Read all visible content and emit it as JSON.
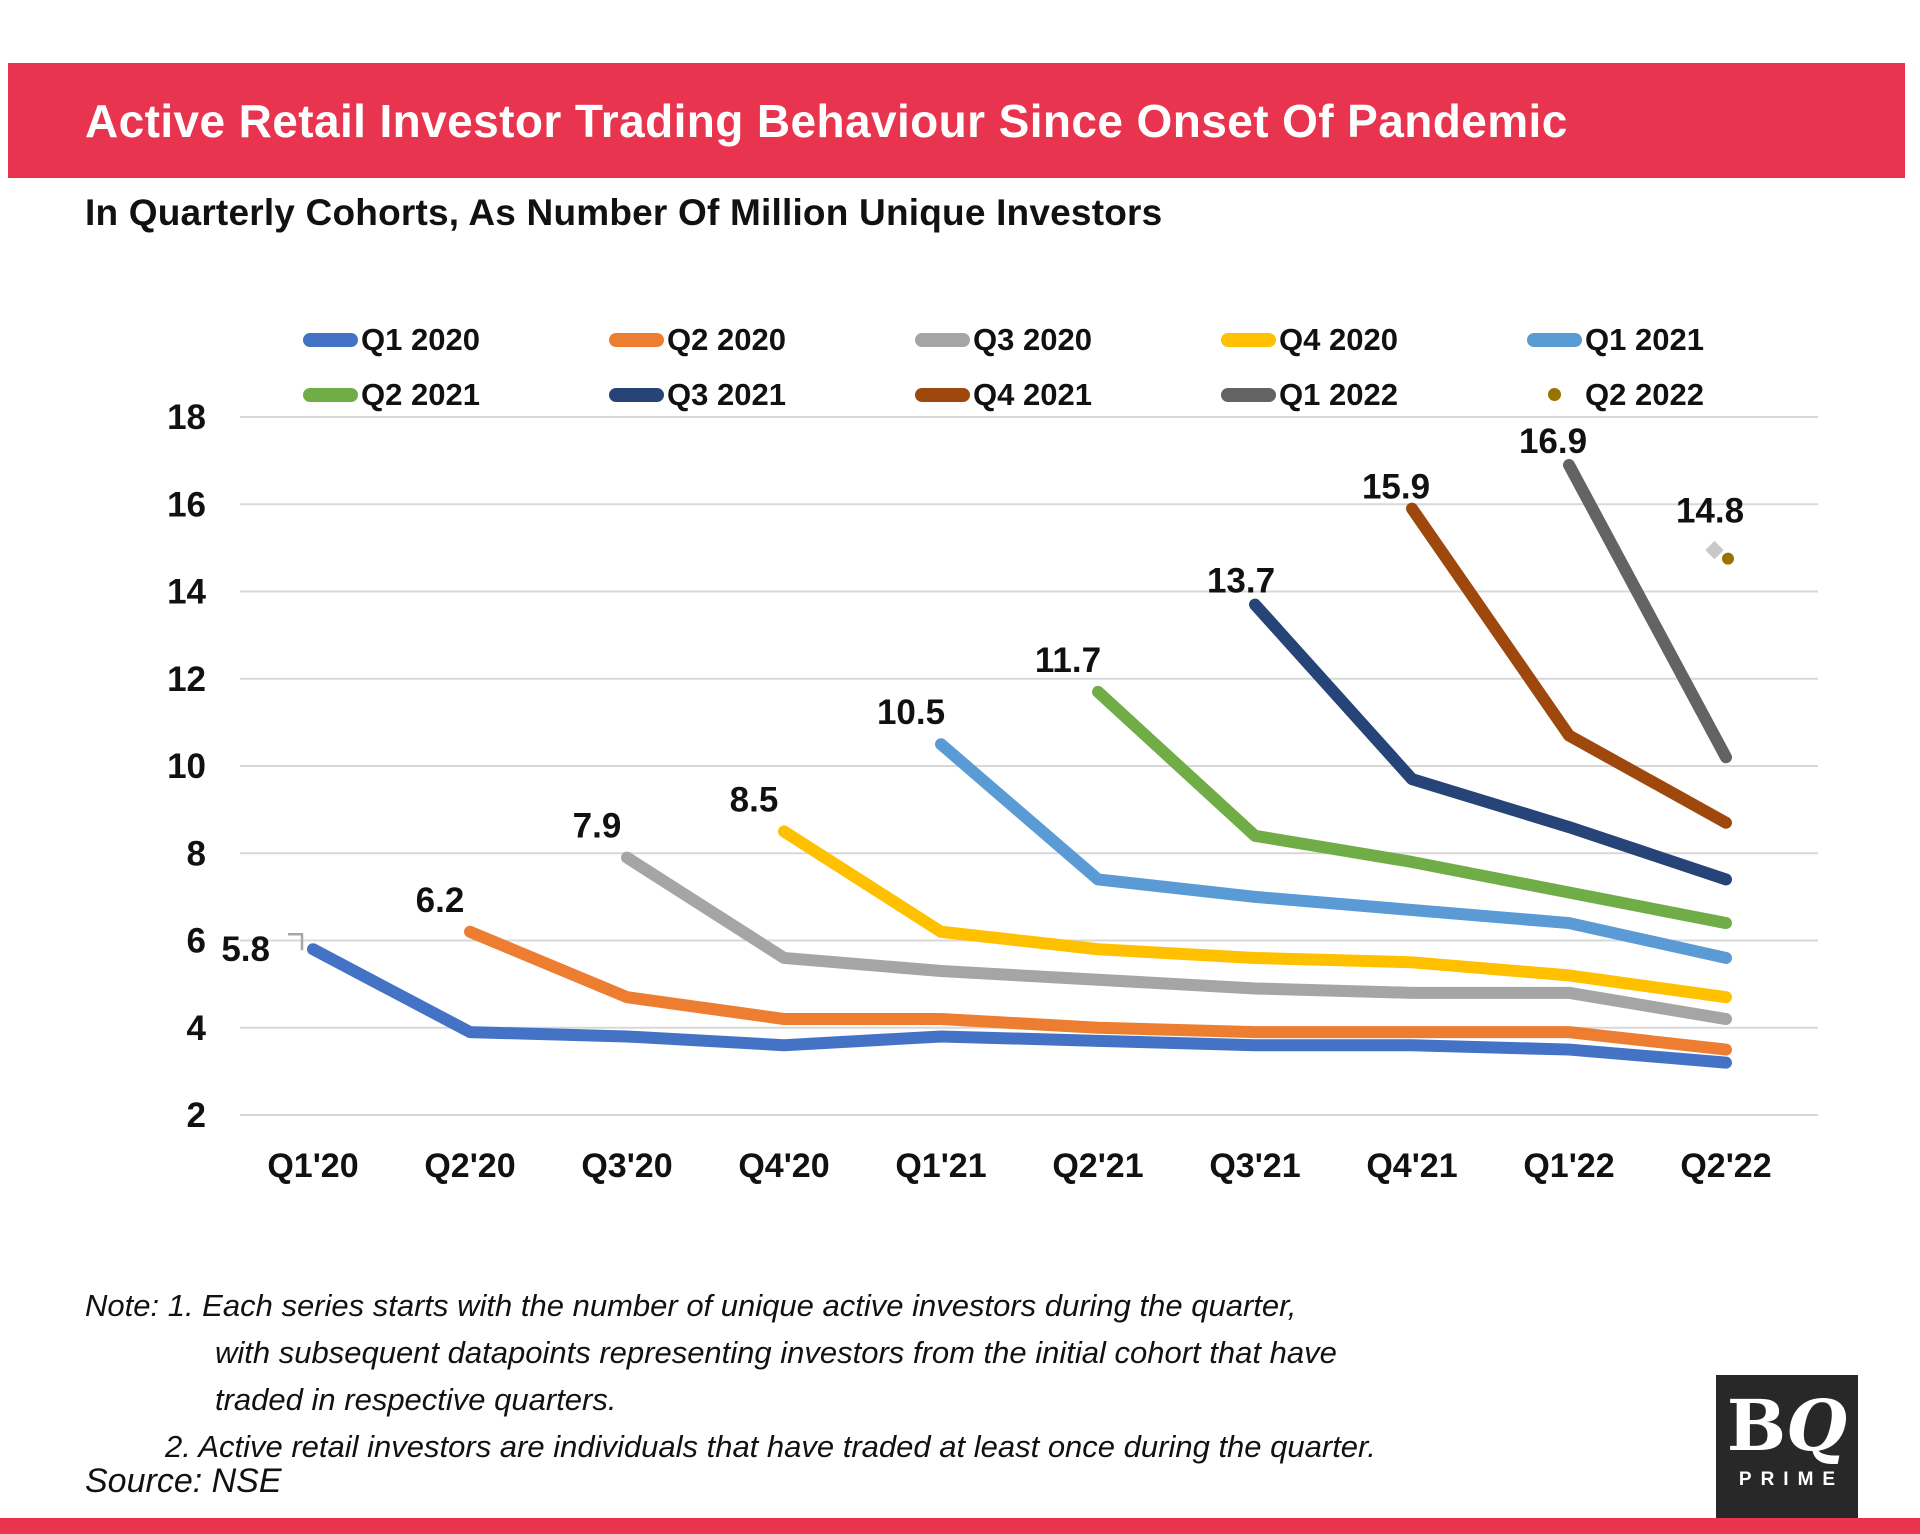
{
  "header": {
    "title": "Active Retail Investor Trading Behaviour Since Onset Of Pandemic",
    "subtitle": "In Quarterly Cohorts, As Number Of Million Unique Investors",
    "accent_color": "#E8344E"
  },
  "legend": {
    "position": "top",
    "items": [
      {
        "label": "Q1 2020",
        "color": "#4472C4",
        "marker": "line"
      },
      {
        "label": "Q2 2020",
        "color": "#ED7D31",
        "marker": "line"
      },
      {
        "label": "Q3 2020",
        "color": "#A5A5A5",
        "marker": "line"
      },
      {
        "label": "Q4 2020",
        "color": "#FFC000",
        "marker": "line"
      },
      {
        "label": "Q1 2021",
        "color": "#5B9BD5",
        "marker": "line"
      },
      {
        "label": "Q2 2021",
        "color": "#70AD47",
        "marker": "line"
      },
      {
        "label": "Q3 2021",
        "color": "#264478",
        "marker": "line"
      },
      {
        "label": "Q4 2021",
        "color": "#9E480E",
        "marker": "line"
      },
      {
        "label": "Q1 2022",
        "color": "#636363",
        "marker": "line"
      },
      {
        "label": "Q2 2022",
        "color": "#997300",
        "marker": "dot"
      }
    ]
  },
  "chart_data": {
    "type": "line",
    "title": "Active Retail Investor Trading Behaviour Since Onset Of Pandemic",
    "subtitle": "In Quarterly Cohorts, As Number Of Million Unique Investors",
    "unit": "million unique investors",
    "categories": [
      "Q1'20",
      "Q2'20",
      "Q3'20",
      "Q4'20",
      "Q1'21",
      "Q2'21",
      "Q3'21",
      "Q4'21",
      "Q1'22",
      "Q2'22"
    ],
    "y_axis": {
      "min": 2,
      "max": 18,
      "tick_step": 2,
      "ticks": [
        18,
        16,
        14,
        12,
        10,
        8,
        6,
        4,
        2
      ]
    },
    "grid": "horizontal",
    "legend_position": "top",
    "gridline_color": "#D8D8D8",
    "series": [
      {
        "name": "Q1 2020",
        "color": "#4472C4",
        "start_index": 0,
        "start_label": "5.8",
        "values": [
          5.8,
          3.9,
          3.8,
          3.6,
          3.8,
          3.7,
          3.6,
          3.6,
          3.5,
          3.2
        ]
      },
      {
        "name": "Q2 2020",
        "color": "#ED7D31",
        "start_index": 1,
        "start_label": "6.2",
        "values": [
          6.2,
          4.7,
          4.2,
          4.2,
          4.0,
          3.9,
          3.9,
          3.9,
          3.5
        ]
      },
      {
        "name": "Q3 2020",
        "color": "#A5A5A5",
        "start_index": 2,
        "start_label": "7.9",
        "values": [
          7.9,
          5.6,
          5.3,
          5.1,
          4.9,
          4.8,
          4.8,
          4.2
        ]
      },
      {
        "name": "Q4 2020",
        "color": "#FFC000",
        "start_index": 3,
        "start_label": "8.5",
        "values": [
          8.5,
          6.2,
          5.8,
          5.6,
          5.5,
          5.2,
          4.7
        ]
      },
      {
        "name": "Q1 2021",
        "color": "#5B9BD5",
        "start_index": 4,
        "start_label": "10.5",
        "values": [
          10.5,
          7.4,
          7.0,
          6.7,
          6.4,
          5.6
        ]
      },
      {
        "name": "Q2 2021",
        "color": "#70AD47",
        "start_index": 5,
        "start_label": "11.7",
        "values": [
          11.7,
          8.4,
          7.8,
          7.1,
          6.4
        ]
      },
      {
        "name": "Q3 2021",
        "color": "#264478",
        "start_index": 6,
        "start_label": "13.7",
        "values": [
          13.7,
          9.7,
          8.6,
          7.4
        ]
      },
      {
        "name": "Q4 2021",
        "color": "#9E480E",
        "start_index": 7,
        "start_label": "15.9",
        "values": [
          15.9,
          10.7,
          8.7
        ]
      },
      {
        "name": "Q1 2022",
        "color": "#636363",
        "start_index": 8,
        "start_label": "16.9",
        "values": [
          16.9,
          10.2
        ]
      },
      {
        "name": "Q2 2022",
        "color": "#997300",
        "start_index": 9,
        "start_label": "14.8",
        "marker": "dot",
        "values": [
          14.8
        ]
      }
    ]
  },
  "note": {
    "line1": "Note: 1. Each series starts with the number of unique active investors during the quarter,",
    "line2": "with subsequent datapoints representing investors   from the initial cohort that have",
    "line3": "traded in respective quarters.",
    "line4": "2. Active retail investors are individuals that have traded at least once during the quarter."
  },
  "footer": {
    "source": "Source: NSE",
    "logo": {
      "top_b": "B",
      "top_q": "Q",
      "bottom": "PRIME"
    }
  }
}
